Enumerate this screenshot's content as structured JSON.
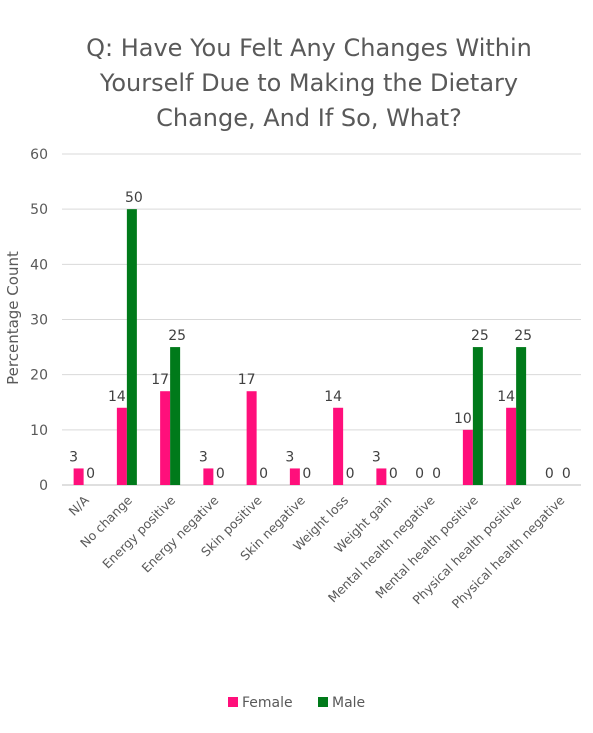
{
  "chart_data": {
    "type": "bar",
    "title_lines": [
      "Q: Have You Felt Any Changes Within",
      "Yourself Due to Making the Dietary",
      "Change, And If So, What?"
    ],
    "xlabel": "",
    "ylabel": "Percentage Count",
    "ylim": [
      0,
      60
    ],
    "yticks": [
      0,
      10,
      20,
      30,
      40,
      50,
      60
    ],
    "grid": true,
    "legend_position": "bottom",
    "categories": [
      "N/A",
      "No change",
      "Energy positive",
      "Energy negative",
      "Skin positive",
      "Skin negative",
      "Weight loss",
      "Weight gain",
      "Mental health negative",
      "Mental health positive",
      "Physical health positive",
      "Physical health negative"
    ],
    "series": [
      {
        "name": "Female",
        "color": "#ff0f7b",
        "values": [
          3,
          14,
          17,
          3,
          17,
          3,
          14,
          3,
          0,
          10,
          14,
          0
        ]
      },
      {
        "name": "Male",
        "color": "#007a1a",
        "values": [
          0,
          50,
          25,
          0,
          0,
          0,
          0,
          0,
          0,
          25,
          25,
          0
        ]
      }
    ]
  }
}
